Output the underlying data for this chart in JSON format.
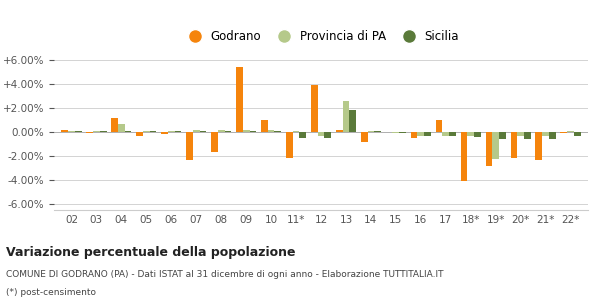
{
  "years": [
    "02",
    "03",
    "04",
    "05",
    "06",
    "07",
    "08",
    "09",
    "10",
    "11*",
    "12",
    "13",
    "14",
    "15",
    "16",
    "17",
    "18*",
    "19*",
    "20*",
    "21*",
    "22*"
  ],
  "godrano": [
    0.15,
    -0.1,
    1.2,
    -0.3,
    -0.2,
    -2.3,
    -1.7,
    5.4,
    1.0,
    -2.15,
    3.9,
    0.2,
    -0.8,
    0.0,
    -0.5,
    1.0,
    -4.1,
    -2.8,
    -2.2,
    -2.3,
    -0.1
  ],
  "provincia_pa": [
    0.05,
    0.05,
    0.65,
    0.1,
    0.05,
    0.2,
    0.15,
    0.15,
    0.15,
    0.1,
    -0.3,
    2.6,
    0.1,
    -0.1,
    -0.3,
    -0.35,
    -0.35,
    -2.25,
    -0.35,
    -0.35,
    0.05
  ],
  "sicilia": [
    0.05,
    0.05,
    0.1,
    0.05,
    0.05,
    0.05,
    0.1,
    0.1,
    0.1,
    -0.5,
    -0.5,
    1.85,
    0.05,
    -0.1,
    -0.35,
    -0.35,
    -0.4,
    -0.55,
    -0.55,
    -0.55,
    -0.3
  ],
  "godrano_color": "#f5840c",
  "provincia_color": "#b5c98a",
  "sicilia_color": "#5a7a3a",
  "bg_color": "#ffffff",
  "grid_color": "#cccccc",
  "title": "Variazione percentuale della popolazione",
  "subtitle": "COMUNE DI GODRANO (PA) - Dati ISTAT al 31 dicembre di ogni anno - Elaborazione TUTTITALIA.IT",
  "footnote": "(*) post-censimento",
  "ylim": [
    -6.5,
    6.5
  ],
  "yticks": [
    -6.0,
    -4.0,
    -2.0,
    0.0,
    2.0,
    4.0,
    6.0
  ],
  "bar_width": 0.27,
  "figsize": [
    6.0,
    3.0
  ],
  "dpi": 100
}
